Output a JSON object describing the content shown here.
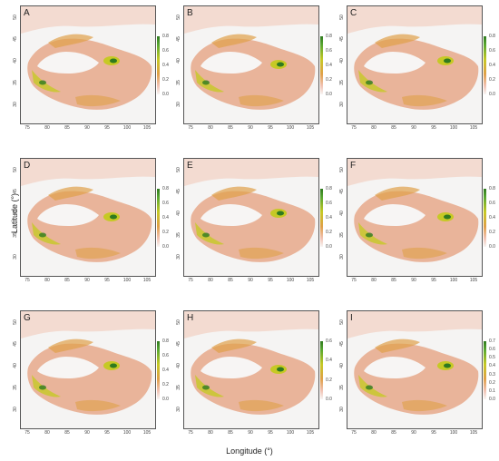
{
  "axis": {
    "x_label": "Longitude (°)",
    "y_label": "Latitude (°)",
    "x_ticks": [
      "75",
      "80",
      "85",
      "90",
      "95",
      "100",
      "105"
    ],
    "y_ticks": [
      "50",
      "45",
      "40",
      "35",
      "30"
    ]
  },
  "colors": {
    "background": "#f5f4f3",
    "low": "#f1c2b3",
    "mid": "#e0a048",
    "high": "#c6c925",
    "top": "#2f7a1f"
  },
  "panels": [
    {
      "label": "A",
      "legend": [
        "0.8",
        "0.6",
        "0.4",
        "0.2",
        "0.0"
      ]
    },
    {
      "label": "B",
      "legend": [
        "0.8",
        "0.6",
        "0.4",
        "0.2",
        "0.0"
      ]
    },
    {
      "label": "C",
      "legend": [
        "0.8",
        "0.6",
        "0.4",
        "0.2",
        "0.0"
      ]
    },
    {
      "label": "D",
      "legend": [
        "0.8",
        "0.6",
        "0.4",
        "0.2",
        "0.0"
      ]
    },
    {
      "label": "E",
      "legend": [
        "0.8",
        "0.6",
        "0.4",
        "0.2",
        "0.0"
      ]
    },
    {
      "label": "F",
      "legend": [
        "0.8",
        "0.6",
        "0.4",
        "0.2",
        "0.0"
      ]
    },
    {
      "label": "G",
      "legend": [
        "0.8",
        "0.6",
        "0.4",
        "0.2",
        "0.0"
      ]
    },
    {
      "label": "H",
      "legend": [
        "0.6",
        "0.4",
        "0.2",
        "0.0"
      ]
    },
    {
      "label": "I",
      "legend": [
        "0.7",
        "0.6",
        "0.5",
        "0.4",
        "0.3",
        "0.2",
        "0.1",
        "0.0"
      ]
    }
  ]
}
